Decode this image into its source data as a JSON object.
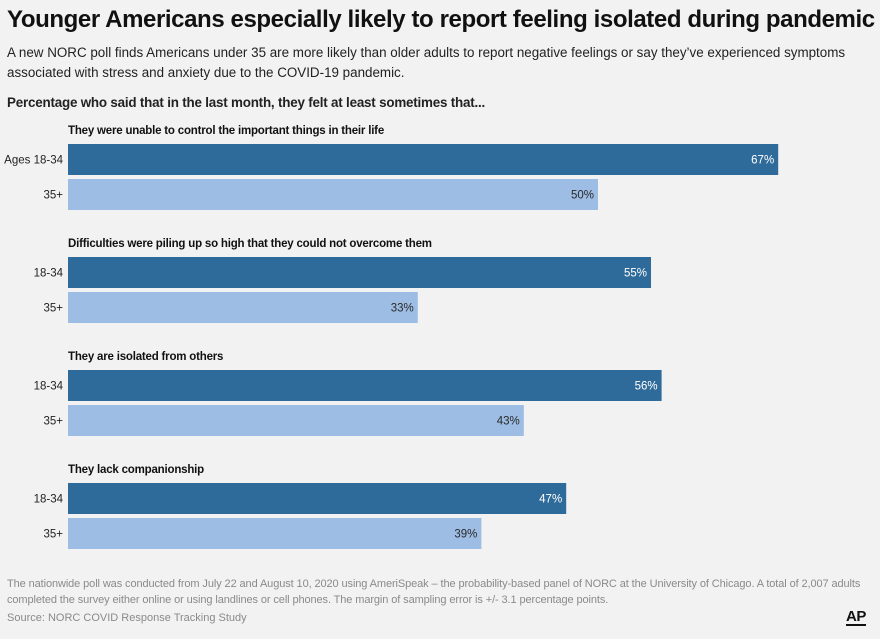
{
  "header": {
    "title": "Younger Americans especially likely to report feeling isolated during pandemic",
    "subtitle": "A new NORC poll finds Americans under 35 are more likely than older adults to report negative feelings or say they’ve experienced symptoms associated with stress and anxiety due to the COVID-19 pandemic.",
    "question": "Percentage who said that in the last month, they felt at least sometimes that..."
  },
  "colors": {
    "young": "#2f6b9a",
    "old": "#9dbde4",
    "young_label": "#ffffff",
    "old_label": "#2a2a2a"
  },
  "chart_data": {
    "type": "bar",
    "orientation": "horizontal",
    "xlim": [
      0,
      100
    ],
    "unit": "%",
    "groups": [
      {
        "category": "They were unable to control the important things in their life",
        "bars": [
          {
            "label": "Ages 18-34",
            "series": "18-34",
            "value": 67,
            "value_label": "67%"
          },
          {
            "label": "35+",
            "series": "35+",
            "value": 50,
            "value_label": "50%"
          }
        ]
      },
      {
        "category": "Difficulties were piling up so high that they could not overcome them",
        "bars": [
          {
            "label": "18-34",
            "series": "18-34",
            "value": 55,
            "value_label": "55%"
          },
          {
            "label": "35+",
            "series": "35+",
            "value": 33,
            "value_label": "33%"
          }
        ]
      },
      {
        "category": "They are isolated from others",
        "bars": [
          {
            "label": "18-34",
            "series": "18-34",
            "value": 56,
            "value_label": "56%"
          },
          {
            "label": "35+",
            "series": "35+",
            "value": 43,
            "value_label": "43%"
          }
        ]
      },
      {
        "category": "They lack companionship",
        "bars": [
          {
            "label": "18-34",
            "series": "18-34",
            "value": 47,
            "value_label": "47%"
          },
          {
            "label": "35+",
            "series": "35+",
            "value": 39,
            "value_label": "39%"
          }
        ]
      }
    ]
  },
  "footer": {
    "note": "The nationwide poll was conducted from July 22 and August 10, 2020 using AmeriSpeak – the probability-based panel of NORC at the University of Chicago. A total of 2,007 adults completed the survey either online or using landlines or cell phones. The margin of sampling error is +/- 3.1 percentage points.",
    "source": "Source: NORC COVID Response Tracking Study",
    "logo": "AP"
  }
}
